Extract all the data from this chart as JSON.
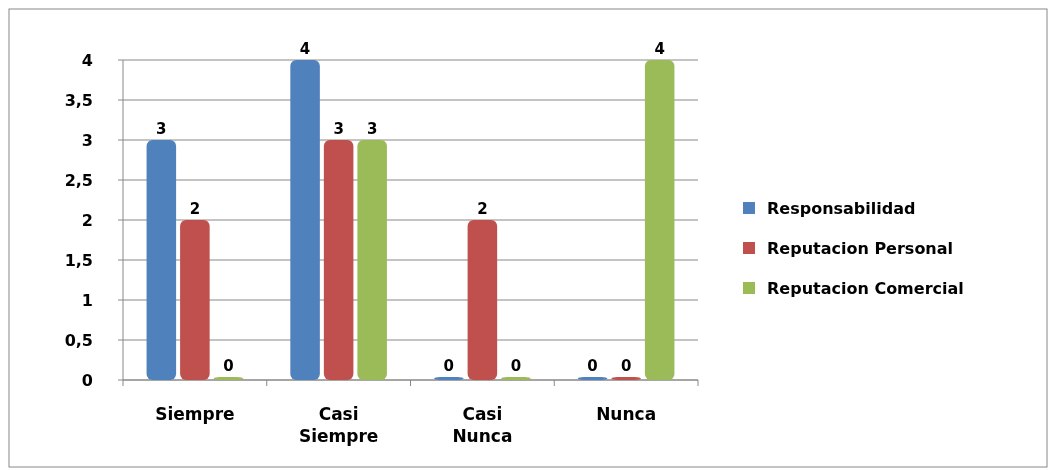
{
  "chart_data": {
    "type": "bar",
    "categories": [
      "Siempre",
      "Casi Siempre",
      "Casi Nunca",
      "Nunca"
    ],
    "series": [
      {
        "name": "Responsabilidad",
        "color": "#4f81bd",
        "values": [
          3,
          4,
          0,
          0
        ]
      },
      {
        "name": "Reputacion Personal",
        "color": "#c0504d",
        "values": [
          2,
          3,
          2,
          0
        ]
      },
      {
        "name": "Reputacion Comercial",
        "color": "#9bbb59",
        "values": [
          0,
          3,
          0,
          4
        ]
      }
    ],
    "ylim": [
      0,
      4
    ],
    "yticks": [
      0,
      {
        "value": 0.5,
        "label": "0,5"
      },
      1,
      {
        "value": 1.5,
        "label": "1,5"
      },
      2,
      {
        "value": 2.5,
        "label": "2,5"
      },
      3,
      {
        "value": 3.5,
        "label": "3,5"
      },
      4
    ],
    "grid": "y",
    "legend": "right",
    "data_labels": true
  }
}
